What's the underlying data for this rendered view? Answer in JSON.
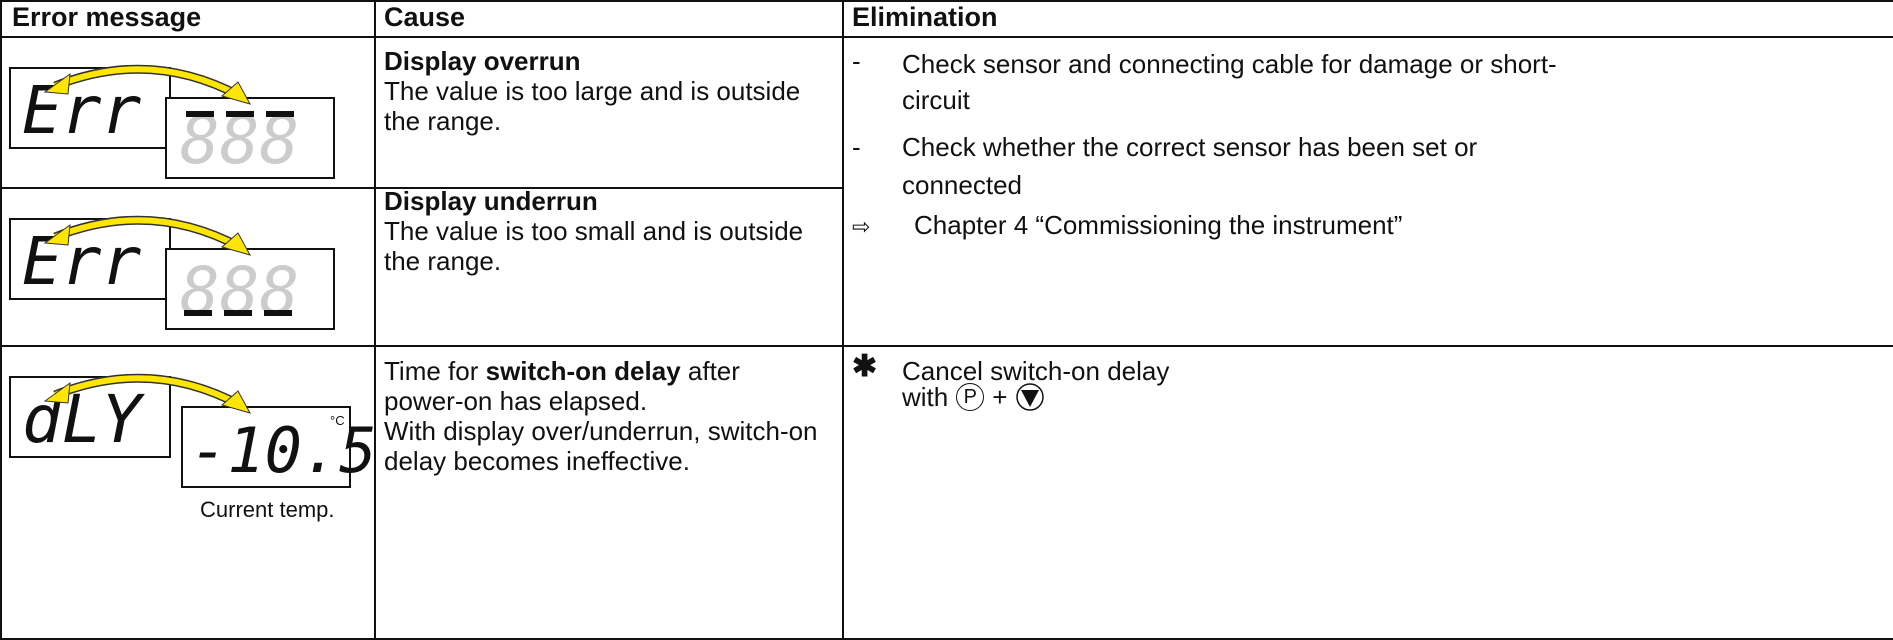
{
  "header": {
    "columns": [
      "Error message",
      "Cause",
      "Elimination"
    ]
  },
  "rows": [
    {
      "display": {
        "code": "Err",
        "value": "888"
      },
      "cause": {
        "title": "Display overrun",
        "text": "The value is too large and is outside the range."
      }
    },
    {
      "display": {
        "code": "Err",
        "value": "888"
      },
      "cause": {
        "title": "Display underrun",
        "text": "The value is too small and is outside the range."
      }
    },
    {
      "display": {
        "code": "dLY",
        "value": "-10.5",
        "unit": "°C",
        "caption": "Current temp."
      },
      "cause": {
        "before": "Time for ",
        "bold": "switch-on delay",
        "after": " after power-on has elapsed.",
        "note": "With display over/underrun, switch-on delay becomes ineffective."
      },
      "elimination": {
        "bullet": "✱",
        "text": "Cancel switch-on delay",
        "with": "with",
        "key": "P",
        "plus": "+"
      }
    }
  ],
  "elimination": [
    {
      "bullet": "-",
      "text": "Check sensor and connecting cable for damage or short-circuit"
    },
    {
      "bullet": "-",
      "text": "Check whether the correct sensor has been set or connected"
    },
    {
      "bullet": "⇨",
      "text": "Chapter 4 “Commissioning the instrument”"
    }
  ]
}
